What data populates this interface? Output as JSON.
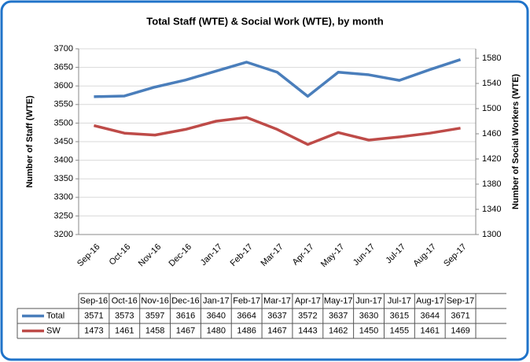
{
  "chart_data": {
    "type": "line",
    "title": "Total Staff (WTE) & Social Work (WTE), by month",
    "y_label": "Number of Staff (WTE)",
    "y2_label": "Number of Social Workers (WTE)",
    "categories": [
      "Sep-16",
      "Oct-16",
      "Nov-16",
      "Dec-16",
      "Jan-17",
      "Feb-17",
      "Mar-17",
      "Apr-17",
      "May-17",
      "Jun-17",
      "Jul-17",
      "Aug-17",
      "Sep-17"
    ],
    "series": [
      {
        "name": "Total",
        "color": "#4a7ebb",
        "values": [
          3571,
          3573,
          3597,
          3616,
          3640,
          3664,
          3637,
          3572,
          3637,
          3630,
          3615,
          3644,
          3671
        ]
      },
      {
        "name": "SW",
        "color": "#be4b48",
        "axis": "y2",
        "values": [
          1473,
          1461,
          1458,
          1467,
          1480,
          1486,
          1467,
          1443,
          1462,
          1450,
          1455,
          1461,
          1469
        ]
      }
    ],
    "ylim": [
      3200,
      3700
    ],
    "yticks": [
      3200,
      3250,
      3300,
      3350,
      3400,
      3450,
      3500,
      3550,
      3600,
      3650,
      3700
    ],
    "y2lim": [
      1300,
      1595
    ],
    "y2ticks": [
      1300,
      1340,
      1380,
      1420,
      1460,
      1500,
      1540,
      1580
    ],
    "grid": true,
    "data_table": true
  }
}
